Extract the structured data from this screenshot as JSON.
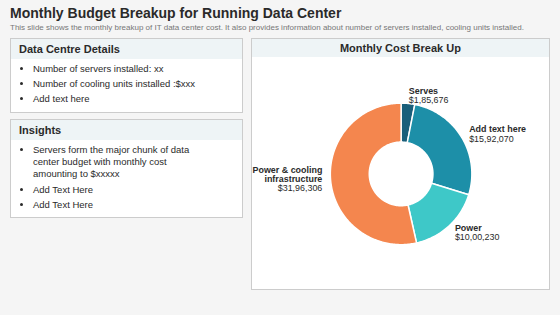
{
  "chart_data": {
    "type": "pie",
    "title": "Monthly Budget Breakup for Running Data Center",
    "subtitle": "This slide shows the monthly breakup of IT data center cost. It also provides information about number of servers installed, cooling units installed.",
    "categories": [
      "Serves",
      "Add text here",
      "Power",
      "Power & cooling\ninfrastructure"
    ],
    "values": [
      185676,
      1592070,
      1000230,
      3196306
    ],
    "value_labels": [
      "$1,85,676",
      "$15,92,070",
      "$10,00,230",
      "$31,96,306"
    ],
    "colors": [
      "#1a5f7a",
      "#1d8fa8",
      "#3ec8c8",
      "#f4864e"
    ],
    "annotations": [
      "Monthly Cost Break Up",
      [
        "Data Centre Details",
        "Number of servers installed: xx",
        "Number of cooling units installed :$xxx",
        "Add text here"
      ],
      [
        "Insights",
        "Servers form the major chunk of data\ncenter budget with monthly cost\namounting to $xxxxx",
        "Add Text Here",
        "Add Text Here"
      ]
    ]
  }
}
